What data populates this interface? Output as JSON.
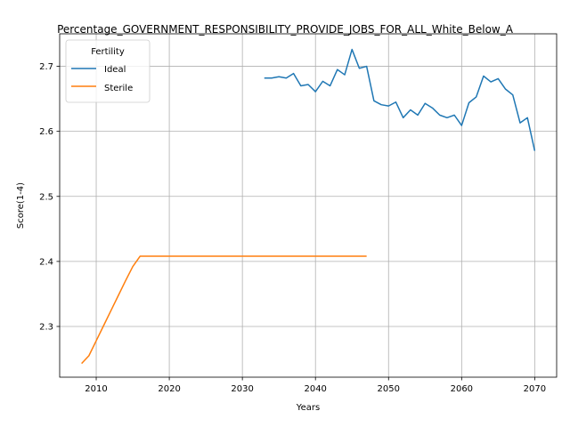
{
  "chart_data": {
    "type": "line",
    "title": "Percentage_GOVERNMENT_RESPONSIBILITY_PROVIDE_JOBS_FOR_ALL_White_Below_A",
    "xlabel": "Years",
    "ylabel": "Score(1-4)",
    "xlim": [
      2005,
      2073
    ],
    "ylim": [
      2.222,
      2.75
    ],
    "xticks": [
      2010,
      2020,
      2030,
      2040,
      2050,
      2060,
      2070
    ],
    "yticks": [
      2.3,
      2.4,
      2.5,
      2.6,
      2.7
    ],
    "ytick_labels": [
      "2.3",
      "2.4",
      "2.5",
      "2.6",
      "2.7"
    ],
    "grid": true,
    "legend": {
      "title": "Fertility",
      "placement": "top-left"
    },
    "series": [
      {
        "name": "Ideal",
        "color": "#1f77b4",
        "x": [
          2033,
          2034,
          2035,
          2036,
          2037,
          2038,
          2039,
          2040,
          2041,
          2042,
          2043,
          2044,
          2045,
          2046,
          2047,
          2048,
          2049,
          2050,
          2051,
          2052,
          2053,
          2054,
          2055,
          2056,
          2057,
          2058,
          2059,
          2060,
          2061,
          2062,
          2063,
          2064,
          2065,
          2066,
          2067,
          2068,
          2069,
          2070
        ],
        "y": [
          2.682,
          2.682,
          2.684,
          2.682,
          2.689,
          2.67,
          2.672,
          2.661,
          2.677,
          2.67,
          2.695,
          2.687,
          2.726,
          2.697,
          2.7,
          2.647,
          2.641,
          2.639,
          2.645,
          2.621,
          2.633,
          2.625,
          2.643,
          2.636,
          2.625,
          2.621,
          2.625,
          2.609,
          2.644,
          2.653,
          2.685,
          2.676,
          2.681,
          2.665,
          2.656,
          2.613,
          2.621,
          2.57
        ]
      },
      {
        "name": "Sterile",
        "color": "#ff7f0e",
        "x": [
          2008,
          2009,
          2010,
          2011,
          2012,
          2013,
          2014,
          2015,
          2016,
          2017,
          2018,
          2019,
          2020,
          2021,
          2022,
          2023,
          2024,
          2025,
          2026,
          2027,
          2028,
          2029,
          2030,
          2031,
          2032,
          2033,
          2034,
          2035,
          2036,
          2037,
          2038,
          2039,
          2040,
          2041,
          2042,
          2043,
          2044,
          2045,
          2046,
          2047
        ],
        "y": [
          2.243,
          2.255,
          2.278,
          2.301,
          2.324,
          2.347,
          2.37,
          2.392,
          2.408,
          2.408,
          2.408,
          2.408,
          2.408,
          2.408,
          2.408,
          2.408,
          2.408,
          2.408,
          2.408,
          2.408,
          2.408,
          2.408,
          2.408,
          2.408,
          2.408,
          2.408,
          2.408,
          2.408,
          2.408,
          2.408,
          2.408,
          2.408,
          2.408,
          2.408,
          2.408,
          2.408,
          2.408,
          2.408,
          2.408,
          2.408
        ]
      }
    ]
  }
}
